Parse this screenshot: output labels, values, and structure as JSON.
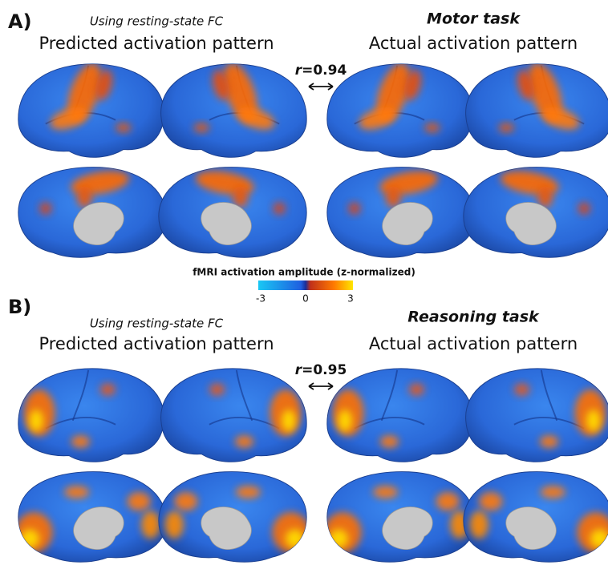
{
  "colorbar": {
    "title": "fMRI activation amplitude (z-normalized)",
    "ticks": [
      -3,
      0,
      3
    ]
  },
  "panels": [
    {
      "label": "A)",
      "method": "Using resting-state FC",
      "left_title": "Predicted activation pattern",
      "task": "Motor task",
      "right_title": "Actual activation pattern",
      "correlation": {
        "symbol": "r",
        "equals": "=",
        "value": 0.94
      }
    },
    {
      "label": "B)",
      "method": "Using resting-state FC",
      "left_title": "Predicted activation pattern",
      "task": "Reasoning task",
      "right_title": "Actual activation pattern",
      "correlation": {
        "symbol": "r",
        "equals": "=",
        "value": 0.95
      }
    }
  ]
}
